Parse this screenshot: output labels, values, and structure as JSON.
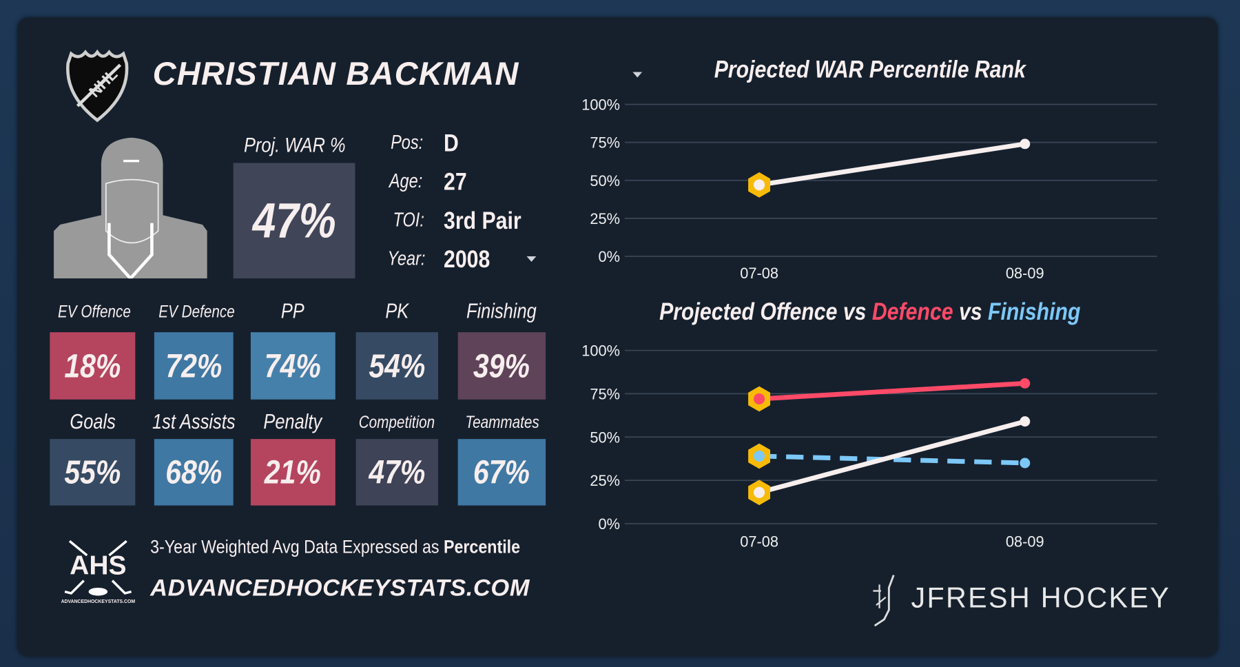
{
  "player": {
    "name": "CHRISTIAN BACKMAN",
    "proj_war_label": "Proj. WAR %",
    "proj_war_value": "47%"
  },
  "info": [
    {
      "label": "Pos:",
      "value": "D"
    },
    {
      "label": "Age:",
      "value": "27"
    },
    {
      "label": "TOI:",
      "value": "3rd Pair"
    },
    {
      "label": "Year:",
      "value": "2008"
    }
  ],
  "stats_row1": [
    {
      "label": "EV Offence",
      "value": "18%",
      "color": "#b5455f"
    },
    {
      "label": "EV Defence",
      "value": "72%",
      "color": "#3f78a3"
    },
    {
      "label": "PP",
      "value": "74%",
      "color": "#4580ab"
    },
    {
      "label": "PK",
      "value": "54%",
      "color": "#364b63"
    },
    {
      "label": "Finishing",
      "value": "39%",
      "color": "#5f4358"
    }
  ],
  "stats_row2": [
    {
      "label": "Goals",
      "value": "55%",
      "color": "#364b63"
    },
    {
      "label": "1st Assists",
      "value": "68%",
      "color": "#3f78a3"
    },
    {
      "label": "Penalty",
      "value": "21%",
      "color": "#b5455f"
    },
    {
      "label": "Competition",
      "value": "47%",
      "color": "#3e4357"
    },
    {
      "label": "Teammates",
      "value": "67%",
      "color": "#3f78a3"
    }
  ],
  "footer": {
    "note_prefix": "3-Year Weighted Avg Data Expressed as ",
    "note_bold": "Percentile",
    "site": "ADVANCEDHOCKEYSTATS.COM",
    "ahs_logo": "AHS",
    "ahs_sub": "ADVANCEDHOCKEYSTATS.COM",
    "brand": "JFRESH HOCKEY"
  },
  "chart_data": [
    {
      "type": "line",
      "title": "Projected WAR Percentile Rank",
      "x": [
        "07-08",
        "08-09"
      ],
      "yticks": [
        "100%",
        "75%",
        "50%",
        "25%",
        "0%"
      ],
      "ylim": [
        0,
        100
      ],
      "series": [
        {
          "name": "WAR",
          "values": [
            47,
            74
          ],
          "color": "#f7eeee"
        }
      ]
    },
    {
      "type": "line",
      "title_parts": [
        {
          "text": "Projected Offence vs ",
          "color": "#f7eeee"
        },
        {
          "text": "Defence",
          "color": "#ff4a68"
        },
        {
          "text": " vs ",
          "color": "#f7eeee"
        },
        {
          "text": "Finishing",
          "color": "#7cc8f8"
        }
      ],
      "x": [
        "07-08",
        "08-09"
      ],
      "yticks": [
        "100%",
        "75%",
        "50%",
        "25%",
        "0%"
      ],
      "ylim": [
        0,
        100
      ],
      "series": [
        {
          "name": "Defence",
          "values": [
            72,
            81
          ],
          "color": "#ff4a68",
          "dashed": false
        },
        {
          "name": "Finishing",
          "values": [
            39,
            35
          ],
          "color": "#7cc8f8",
          "dashed": true
        },
        {
          "name": "Offence",
          "values": [
            18,
            59
          ],
          "color": "#f7eeee",
          "dashed": false
        }
      ]
    }
  ],
  "colors": {
    "marker": "#f7bb07",
    "grid": "#3a4656"
  }
}
